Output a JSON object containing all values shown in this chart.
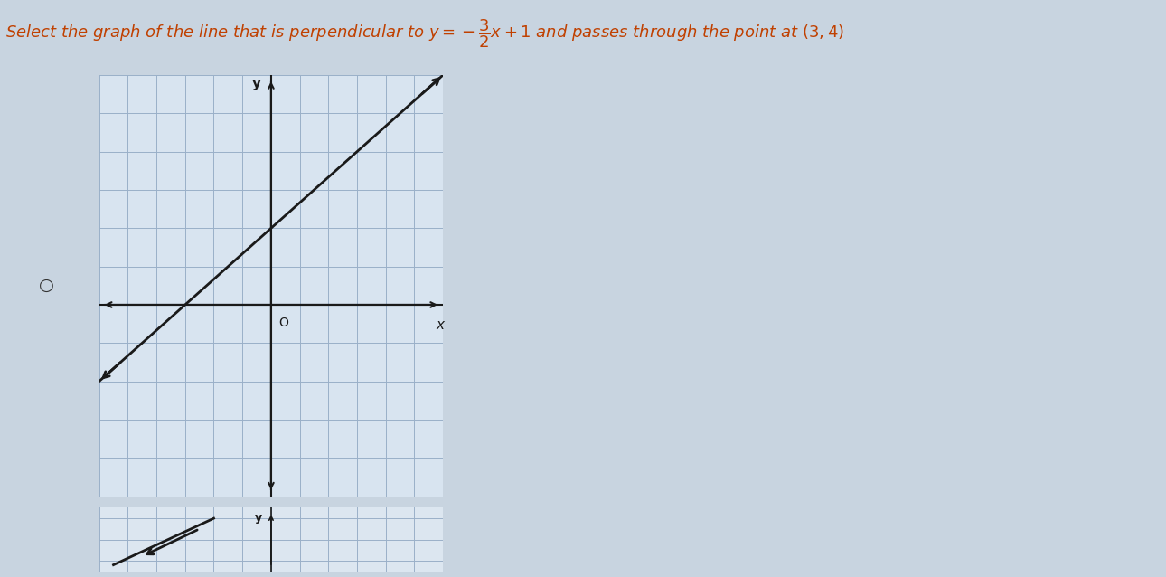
{
  "slope": 0.6667,
  "y_intercept": 2.0,
  "xlim": [
    -6,
    6
  ],
  "ylim": [
    -5,
    6
  ],
  "grid_color": "#9ab0c8",
  "axis_color": "#1a1a1a",
  "line_color": "#1a1a1a",
  "graph_bg_color": "#d8e4f0",
  "figure_bg": "#c8d4e0",
  "bottom_bg": "#dce6f0",
  "title_color": "#c04000",
  "title_fontsize": 13,
  "radio_color": "#333333",
  "x_label": "x",
  "y_label": "y",
  "origin_label": "O"
}
